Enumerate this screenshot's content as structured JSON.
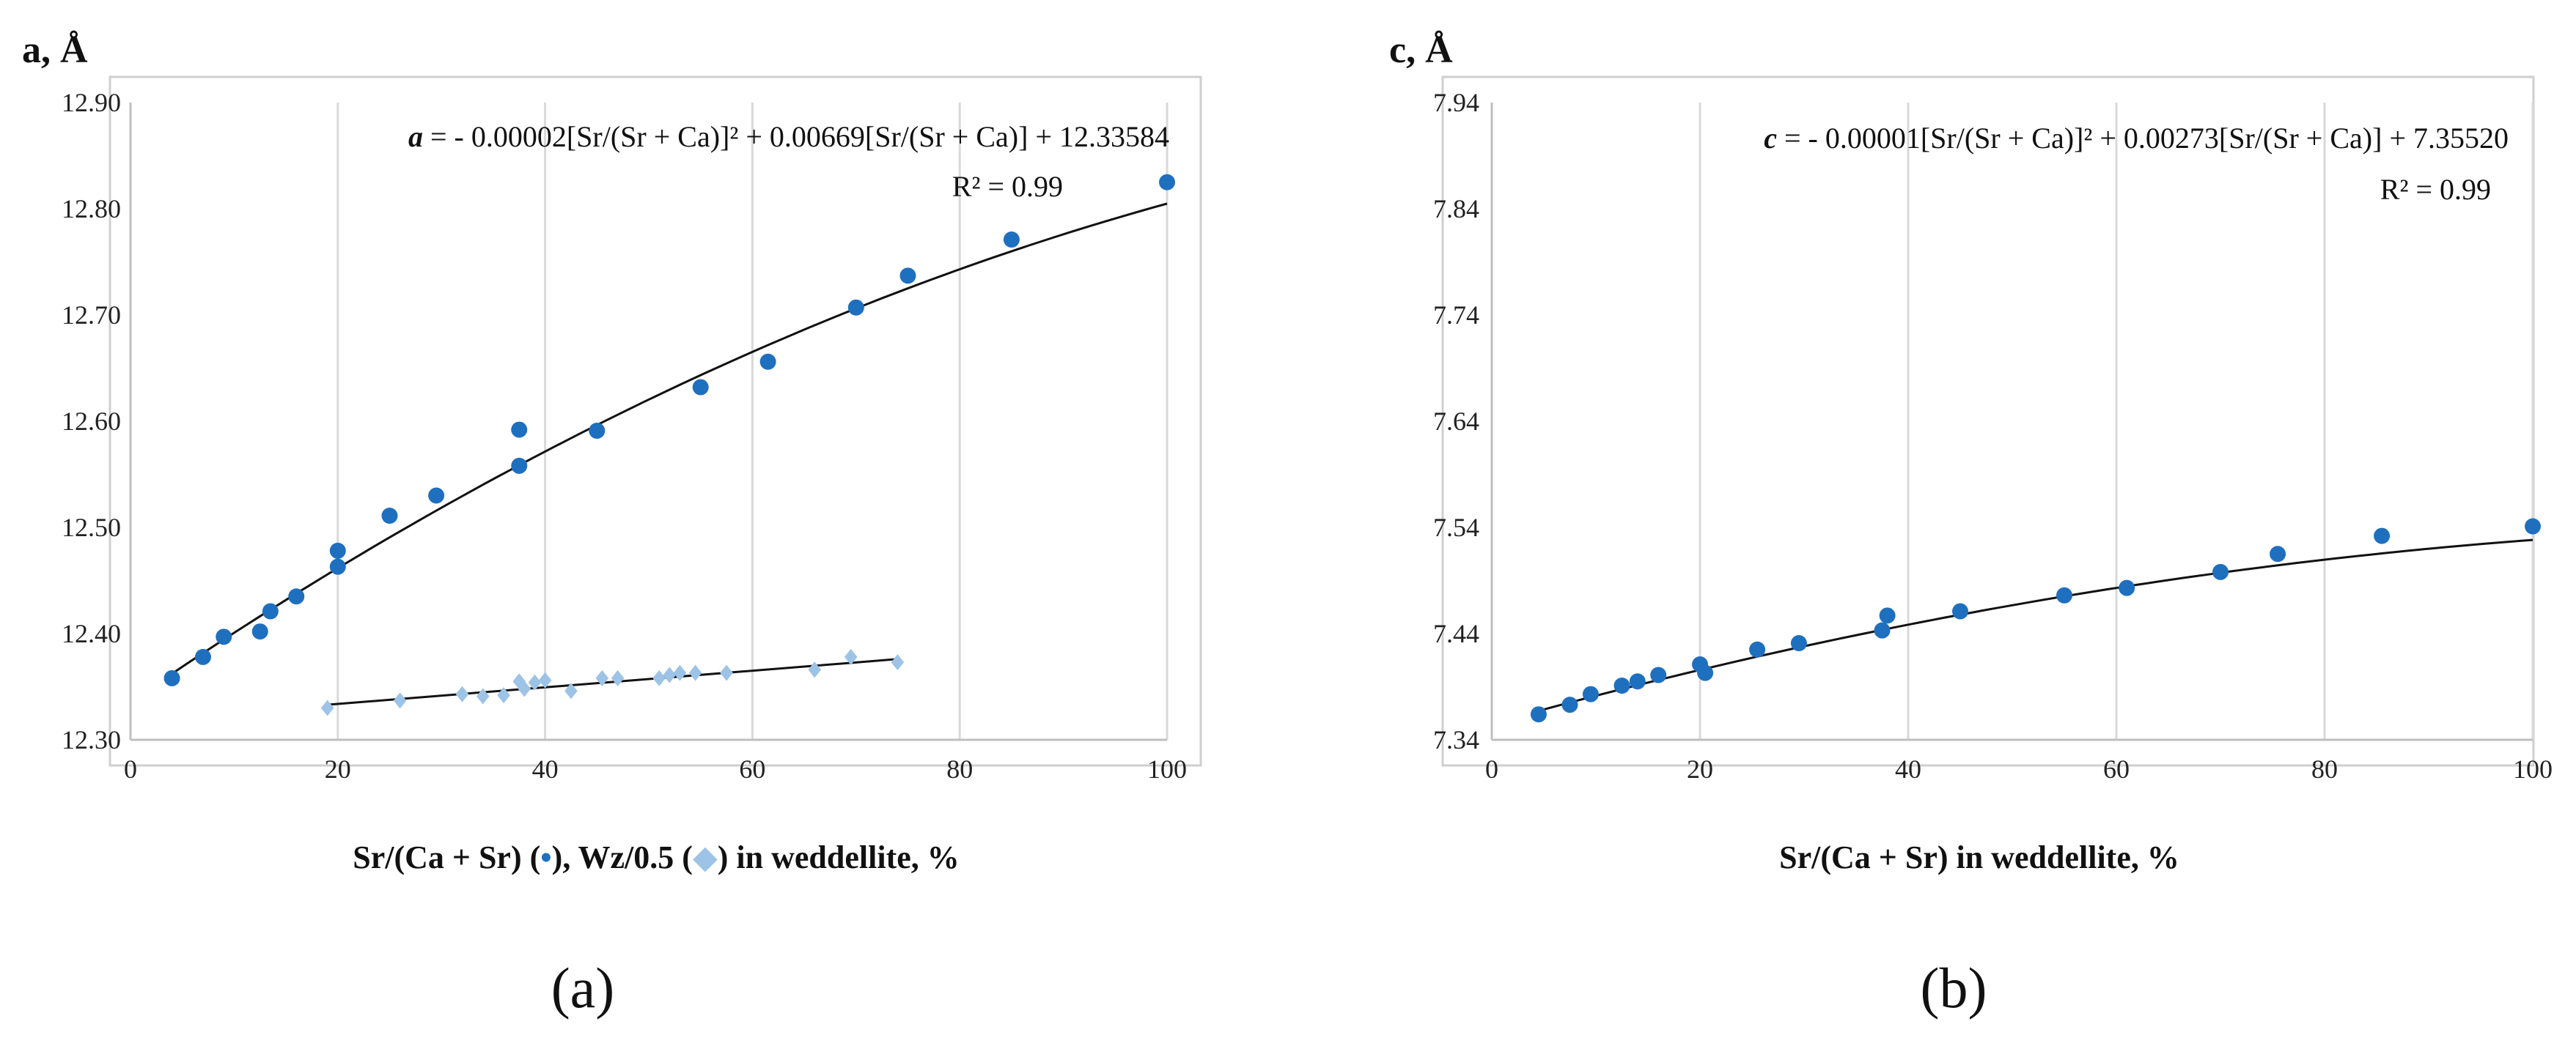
{
  "colors": {
    "series_dots": "#1f6fbf",
    "series_diamonds": "#9dc3e6",
    "trendline": "#111111",
    "grid": "#d9d9d9"
  },
  "chart_data": [
    {
      "panel_label": "(a)",
      "type": "scatter",
      "ylabel": "a, Å",
      "xlabel_parts": [
        "Sr/(Ca + Sr) (",
        "•",
        "),  Wz/0.5  (",
        "◆",
        ") in weddellite, %"
      ],
      "xlim": [
        0,
        100
      ],
      "ylim": [
        12.3,
        12.9
      ],
      "xticks": [
        0,
        20,
        40,
        60,
        80,
        100
      ],
      "yticks": [
        12.3,
        12.4,
        12.5,
        12.6,
        12.7,
        12.8,
        12.9
      ],
      "ytick_labels": [
        "12.30",
        "12.40",
        "12.50",
        "12.60",
        "12.70",
        "12.80",
        "12.90"
      ],
      "grid": "vertical",
      "equation": {
        "var": "a",
        "text": " = - 0.00002[Sr/(Sr + Ca)]² + 0.00669[Sr/(Sr + Ca)] + 12.33584"
      },
      "r2": "R² = 0.99",
      "trendline": {
        "type": "quadratic",
        "coefficients": [
          -2e-05,
          0.00669,
          12.33584
        ],
        "x_range": [
          4,
          100
        ]
      },
      "series": [
        {
          "name": "Sr/(Ca + Sr)",
          "marker": "circle",
          "x": [
            4,
            7,
            9,
            12.5,
            13.5,
            16,
            20,
            20,
            25,
            29.5,
            37.5,
            37.5,
            45,
            55,
            61.5,
            70,
            75,
            85,
            100
          ],
          "y": [
            12.358,
            12.378,
            12.397,
            12.402,
            12.421,
            12.435,
            12.463,
            12.478,
            12.511,
            12.53,
            12.558,
            12.592,
            12.591,
            12.632,
            12.656,
            12.707,
            12.737,
            12.771,
            12.825
          ]
        },
        {
          "name": "Wz/0.5",
          "marker": "diamond",
          "x": [
            19,
            26,
            32,
            34,
            36,
            37.5,
            38,
            39,
            40,
            42.5,
            45.5,
            47,
            51,
            52,
            53,
            54.5,
            57.5,
            66,
            69.5,
            74
          ],
          "y": [
            12.33,
            12.337,
            12.343,
            12.341,
            12.342,
            12.355,
            12.348,
            12.354,
            12.356,
            12.346,
            12.358,
            12.358,
            12.358,
            12.361,
            12.363,
            12.363,
            12.363,
            12.366,
            12.378,
            12.373
          ]
        }
      ],
      "secondary_trendline": {
        "type": "linear",
        "from": [
          19,
          12.333
        ],
        "to": [
          74,
          12.376
        ]
      }
    },
    {
      "panel_label": "(b)",
      "type": "scatter",
      "ylabel": "c, Å",
      "xlabel": "Sr/(Ca + Sr) in weddellite, %",
      "xlim": [
        0,
        100
      ],
      "ylim": [
        7.34,
        7.94
      ],
      "xticks": [
        0,
        20,
        40,
        60,
        80,
        100
      ],
      "yticks": [
        7.34,
        7.44,
        7.54,
        7.64,
        7.74,
        7.84,
        7.94
      ],
      "ytick_labels": [
        "7.34",
        "7.44",
        "7.54",
        "7.64",
        "7.74",
        "7.84",
        "7.94"
      ],
      "grid": "vertical",
      "equation": {
        "var": "c",
        "text": " = - 0.00001[Sr/(Sr + Ca)]² + 0.00273[Sr/(Sr + Ca)] + 7.35520"
      },
      "r2": "R² = 0.99",
      "trendline": {
        "type": "quadratic",
        "coefficients": [
          -1e-05,
          0.00273,
          7.3552
        ],
        "x_range": [
          4,
          100
        ]
      },
      "series": [
        {
          "name": "Sr/(Ca + Sr)",
          "marker": "circle",
          "x": [
            4.5,
            7.5,
            9.5,
            12.5,
            14,
            16,
            20,
            20.5,
            25.5,
            29.5,
            37.5,
            38,
            45,
            55,
            61,
            70,
            75.5,
            85.5,
            100
          ],
          "y": [
            7.364,
            7.373,
            7.383,
            7.391,
            7.395,
            7.401,
            7.411,
            7.403,
            7.425,
            7.431,
            7.443,
            7.457,
            7.461,
            7.476,
            7.483,
            7.498,
            7.515,
            7.532,
            7.541
          ]
        }
      ]
    }
  ]
}
